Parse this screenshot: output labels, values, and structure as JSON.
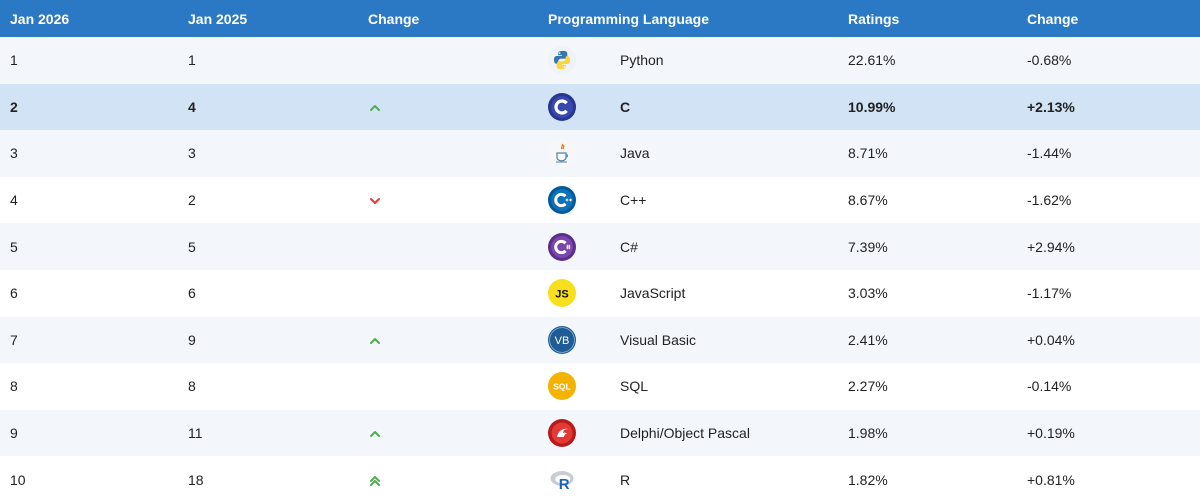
{
  "columns": {
    "rank_current": "Jan 2026",
    "rank_previous": "Jan 2025",
    "change": "Change",
    "language": "Programming Language",
    "ratings": "Ratings",
    "ratings_change": "Change"
  },
  "colors": {
    "header_bg": "#2b78c5",
    "highlight_bg": "#d2e3f5",
    "stripe_bg": "#f3f7fc",
    "trend_up": "#4caf50",
    "trend_down": "#e53935"
  },
  "rows": [
    {
      "rank": "1",
      "prev_rank": "1",
      "trend": "none",
      "icon": "python-icon",
      "language": "Python",
      "rating": "22.61%",
      "change": "-0.68%"
    },
    {
      "rank": "2",
      "prev_rank": "4",
      "trend": "up",
      "icon": "c-icon",
      "language": "C",
      "rating": "10.99%",
      "change": "+2.13%"
    },
    {
      "rank": "3",
      "prev_rank": "3",
      "trend": "none",
      "icon": "java-icon",
      "language": "Java",
      "rating": "8.71%",
      "change": "-1.44%"
    },
    {
      "rank": "4",
      "prev_rank": "2",
      "trend": "down",
      "icon": "cpp-icon",
      "language": "C++",
      "rating": "8.67%",
      "change": "-1.62%"
    },
    {
      "rank": "5",
      "prev_rank": "5",
      "trend": "none",
      "icon": "csharp-icon",
      "language": "C#",
      "rating": "7.39%",
      "change": "+2.94%"
    },
    {
      "rank": "6",
      "prev_rank": "6",
      "trend": "none",
      "icon": "javascript-icon",
      "language": "JavaScript",
      "rating": "3.03%",
      "change": "-1.17%"
    },
    {
      "rank": "7",
      "prev_rank": "9",
      "trend": "up",
      "icon": "visual-basic-icon",
      "language": "Visual Basic",
      "rating": "2.41%",
      "change": "+0.04%"
    },
    {
      "rank": "8",
      "prev_rank": "8",
      "trend": "none",
      "icon": "sql-icon",
      "language": "SQL",
      "rating": "2.27%",
      "change": "-0.14%"
    },
    {
      "rank": "9",
      "prev_rank": "11",
      "trend": "up",
      "icon": "delphi-icon",
      "language": "Delphi/Object Pascal",
      "rating": "1.98%",
      "change": "+0.19%"
    },
    {
      "rank": "10",
      "prev_rank": "18",
      "trend": "double-up",
      "icon": "r-icon",
      "language": "R",
      "rating": "1.82%",
      "change": "+0.81%"
    }
  ]
}
